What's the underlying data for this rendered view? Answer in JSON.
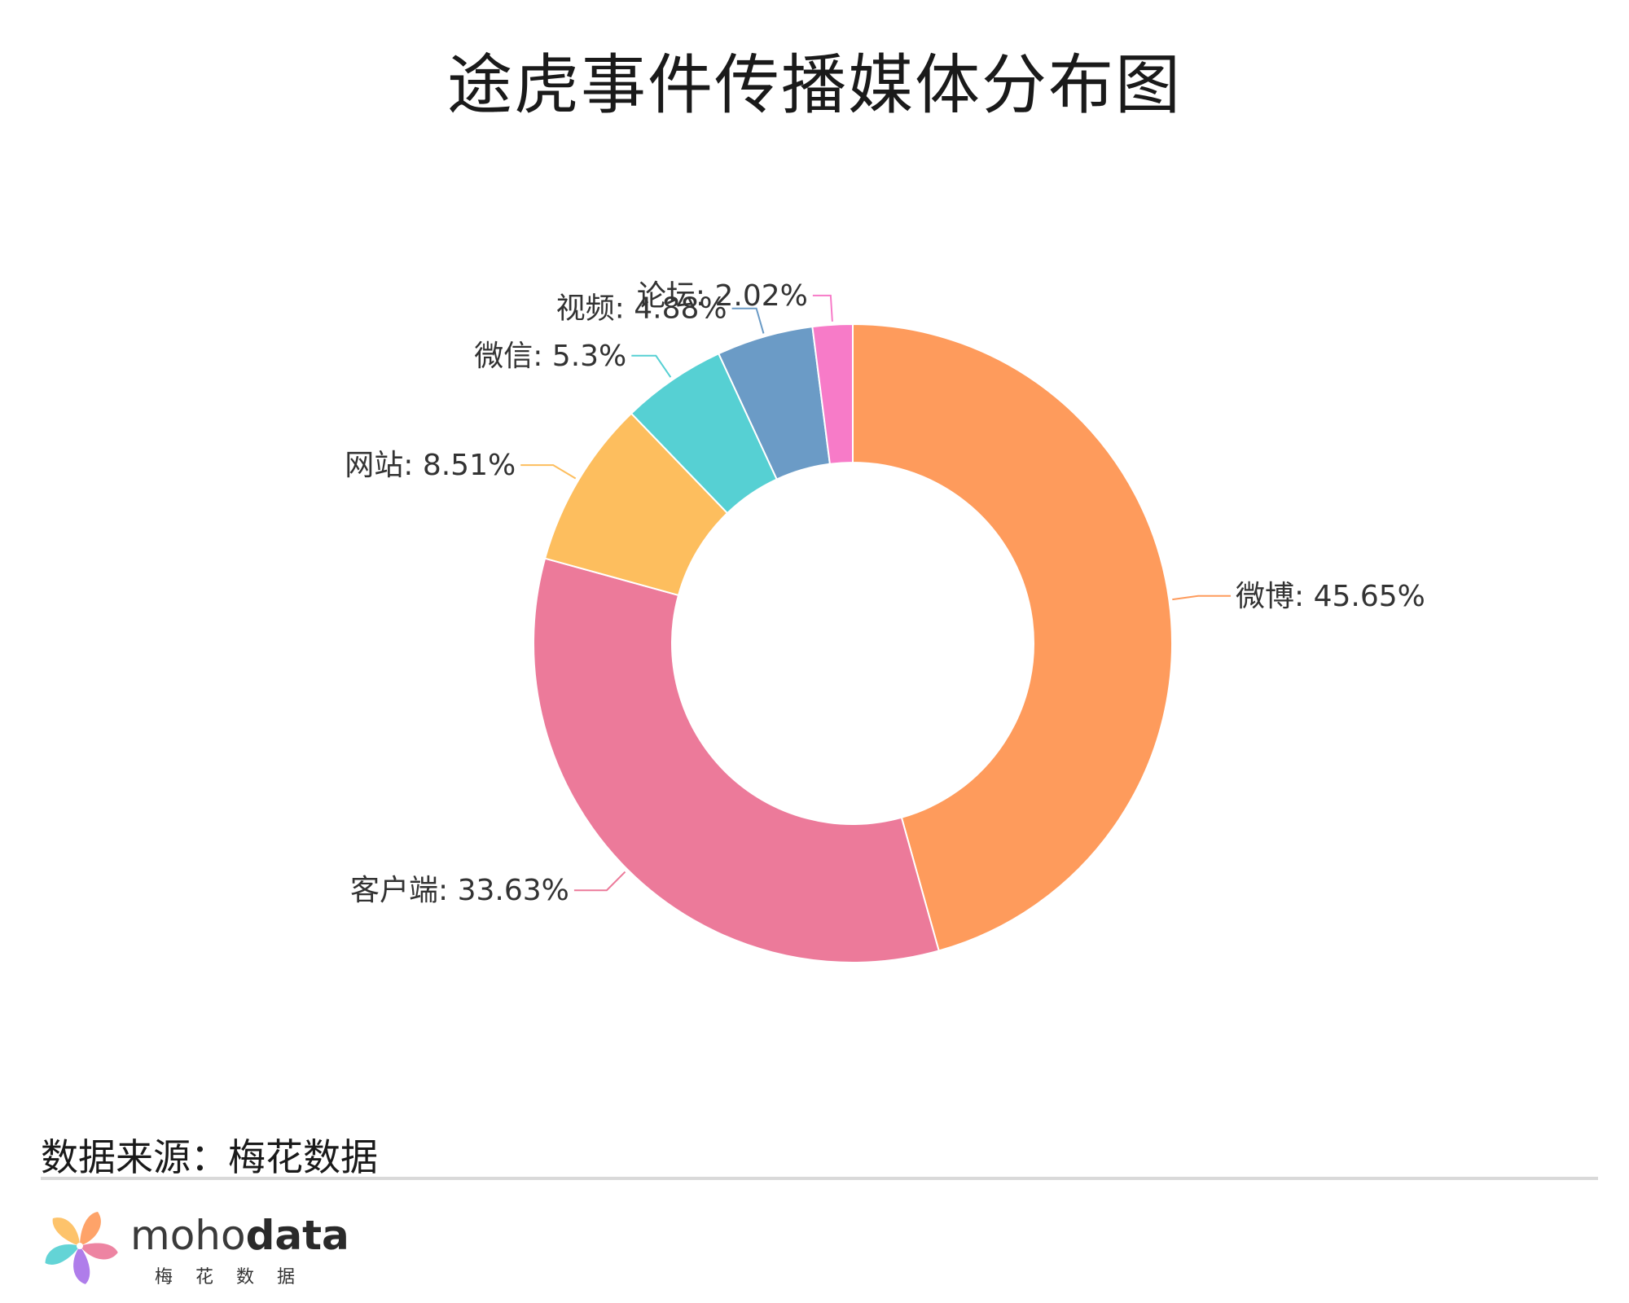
{
  "chart_data": {
    "type": "pie",
    "subtype": "donut",
    "title": "途虎事件传播媒体分布图",
    "slices": [
      {
        "name": "微博",
        "value": 45.65,
        "label": "微博: 45.65%",
        "color": "#fe9b5c"
      },
      {
        "name": "客户端",
        "value": 33.63,
        "label": "客户端: 33.63%",
        "color": "#ec7a9a"
      },
      {
        "name": "网站",
        "value": 8.51,
        "label": "网站: 8.51%",
        "color": "#fdbe5e"
      },
      {
        "name": "微信",
        "value": 5.3,
        "label": "微信: 5.3%",
        "color": "#56d0d3"
      },
      {
        "name": "视频",
        "value": 4.88,
        "label": "视频: 4.88%",
        "color": "#6b9bc6"
      },
      {
        "name": "论坛",
        "value": 2.02,
        "label": "论坛: 2.02%",
        "color": "#f77bc8"
      }
    ],
    "start_angle": "12 o'clock",
    "direction": "clockwise",
    "legend": "none"
  },
  "footer": {
    "source": "数据来源：梅花数据",
    "brand_light": "moho",
    "brand_bold": "data",
    "brand_sub": "梅花数据"
  },
  "colors": {
    "logo_petals": [
      "#fe9b5c",
      "#ec7a9a",
      "#a872e8",
      "#56d0d3",
      "#fdbe5e"
    ]
  }
}
